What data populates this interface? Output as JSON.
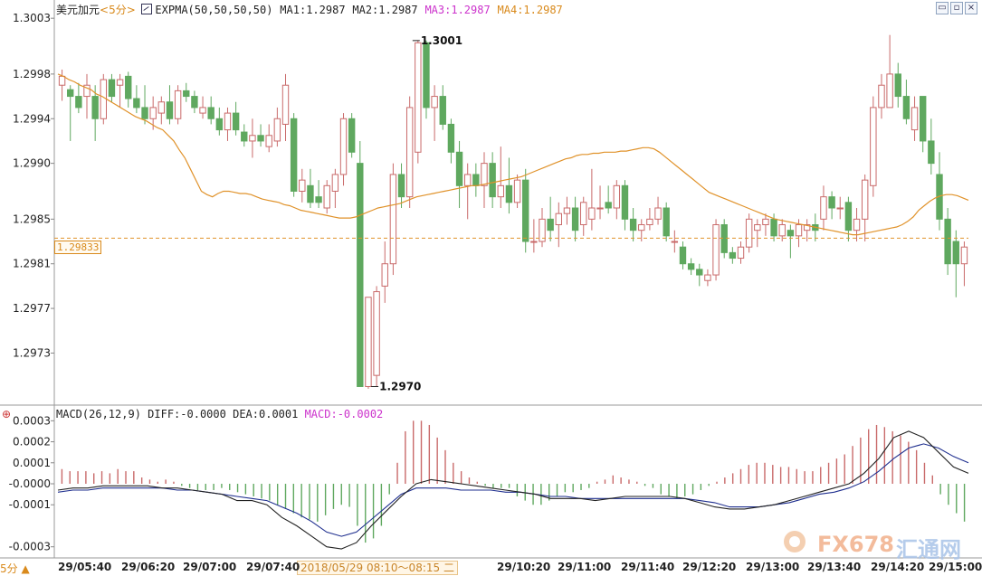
{
  "header": {
    "symbol": "美元加元",
    "period": "<5分>",
    "indicator": "EXPMA(50,50,50,50)",
    "ma1": "MA1:1.2987",
    "ma2": "MA2:1.2987",
    "ma3": "MA3:1.2987",
    "ma4": "MA4:1.2987"
  },
  "macd_header": {
    "name": "MACD(26,12,9)",
    "diff": "DIFF:-0.0000",
    "dea": "DEA:0.0001",
    "macd": "MACD:-0.0002"
  },
  "bottom": {
    "period_button": "5分 ▲",
    "cursor_date": "2018/05/29 08:10～08:15 二"
  },
  "watermark": {
    "brand": "FX678",
    "cn": "汇通网"
  },
  "colors": {
    "up": "#c96a6a",
    "down": "#5fa85f",
    "expma": "#e0922a",
    "diff": "#222222",
    "dea": "#1f2f8f",
    "macd_label": "#cc33cc",
    "grid": "#dddddd",
    "last_price": "#e0922a"
  },
  "icons": [
    "chart-type-icon",
    "minimize-icon",
    "restore-icon",
    "close-icon",
    "crosshair-icon",
    "fx678-logo-icon"
  ],
  "chart_data": [
    {
      "type": "candlestick",
      "yticks": [
        "1.3003",
        "1.2998",
        "1.2994",
        "1.2990",
        "1.2985",
        "1.2981",
        "1.2977",
        "1.2973"
      ],
      "ylim": [
        1.29685,
        1.30035
      ],
      "xticks": [
        "29/05:40",
        "29/06:20",
        "29/07:00",
        "29/07:40",
        "29/10:20",
        "29/11:00",
        "29/11:40",
        "29/12:20",
        "29/13:00",
        "29/13:40",
        "29/14:20",
        "29/15:00"
      ],
      "last_price_label": "1.29833",
      "last_price": 1.29833,
      "annotations": [
        {
          "text": "1.3001",
          "index": 43,
          "value": 1.3001,
          "anchor": "high"
        },
        {
          "text": "1.2970",
          "index": 38,
          "value": 1.297,
          "anchor": "low"
        }
      ],
      "candles": [
        [
          1.2997,
          1.29984,
          1.29956,
          1.29978
        ],
        [
          1.29966,
          1.2997,
          1.2992,
          1.2996
        ],
        [
          1.2996,
          1.29972,
          1.29945,
          1.2995
        ],
        [
          1.2996,
          1.2998,
          1.2994,
          1.2997
        ],
        [
          1.2996,
          1.2997,
          1.2992,
          1.2994
        ],
        [
          1.2994,
          1.2998,
          1.29935,
          1.29975
        ],
        [
          1.29975,
          1.2998,
          1.29955,
          1.2996
        ],
        [
          1.2997,
          1.2998,
          1.2995,
          1.29975
        ],
        [
          1.29978,
          1.29982,
          1.2995,
          1.29958
        ],
        [
          1.29958,
          1.2997,
          1.29945,
          1.2995
        ],
        [
          1.2995,
          1.2997,
          1.29935,
          1.2994
        ],
        [
          1.2994,
          1.2996,
          1.2993,
          1.2995
        ],
        [
          1.29945,
          1.2996,
          1.29935,
          1.29955
        ],
        [
          1.29955,
          1.2997,
          1.29935,
          1.2994
        ],
        [
          1.2994,
          1.2997,
          1.29935,
          1.29965
        ],
        [
          1.29965,
          1.29972,
          1.29955,
          1.2996
        ],
        [
          1.2996,
          1.29965,
          1.29945,
          1.2995
        ],
        [
          1.29945,
          1.2996,
          1.2994,
          1.2995
        ],
        [
          1.2995,
          1.2996,
          1.29935,
          1.2994
        ],
        [
          1.2994,
          1.2995,
          1.29925,
          1.2993
        ],
        [
          1.2993,
          1.2995,
          1.2992,
          1.29945
        ],
        [
          1.29945,
          1.29955,
          1.29925,
          1.2993
        ],
        [
          1.29928,
          1.29935,
          1.29915,
          1.2992
        ],
        [
          1.2992,
          1.2994,
          1.29905,
          1.29925
        ],
        [
          1.29925,
          1.29935,
          1.29915,
          1.2992
        ],
        [
          1.29915,
          1.29935,
          1.2991,
          1.29925
        ],
        [
          1.2992,
          1.2995,
          1.29915,
          1.2994
        ],
        [
          1.29935,
          1.2998,
          1.2992,
          1.2997
        ],
        [
          1.2994,
          1.29945,
          1.2987,
          1.29875
        ],
        [
          1.29875,
          1.29895,
          1.29865,
          1.29885
        ],
        [
          1.2988,
          1.29895,
          1.2986,
          1.29865
        ],
        [
          1.2987,
          1.29885,
          1.2986,
          1.29865
        ],
        [
          1.2986,
          1.29885,
          1.29855,
          1.2988
        ],
        [
          1.29875,
          1.29895,
          1.2986,
          1.2989
        ],
        [
          1.2989,
          1.29945,
          1.2988,
          1.2994
        ],
        [
          1.2994,
          1.29945,
          1.29905,
          1.2991
        ],
        [
          1.299,
          1.2992,
          1.297,
          1.297
        ],
        [
          1.297,
          1.2978,
          1.29698,
          1.2978
        ],
        [
          1.2971,
          1.2979,
          1.297,
          1.29785
        ],
        [
          1.2979,
          1.2983,
          1.29775,
          1.2981
        ],
        [
          1.2981,
          1.299,
          1.298,
          1.2989
        ],
        [
          1.2989,
          1.299,
          1.2986,
          1.2987
        ],
        [
          1.2987,
          1.2996,
          1.2986,
          1.2995
        ],
        [
          1.2991,
          1.3001,
          1.299,
          1.30008
        ],
        [
          1.30008,
          1.3001,
          1.2994,
          1.2995
        ],
        [
          1.2995,
          1.2997,
          1.2992,
          1.2996
        ],
        [
          1.2996,
          1.2997,
          1.2993,
          1.29935
        ],
        [
          1.29935,
          1.2994,
          1.299,
          1.2991
        ],
        [
          1.2991,
          1.2992,
          1.2986,
          1.2988
        ],
        [
          1.2988,
          1.299,
          1.2985,
          1.2989
        ],
        [
          1.2989,
          1.299,
          1.2987,
          1.2988
        ],
        [
          1.2988,
          1.2991,
          1.2986,
          1.299
        ],
        [
          1.299,
          1.2991,
          1.2986,
          1.2987
        ],
        [
          1.2987,
          1.29915,
          1.2986,
          1.2988
        ],
        [
          1.2988,
          1.29905,
          1.29855,
          1.29865
        ],
        [
          1.29865,
          1.2989,
          1.2986,
          1.29885
        ],
        [
          1.29885,
          1.29895,
          1.2982,
          1.2983
        ],
        [
          1.2983,
          1.2985,
          1.2982,
          1.2983
        ],
        [
          1.2983,
          1.2986,
          1.29825,
          1.2985
        ],
        [
          1.2985,
          1.2987,
          1.2983,
          1.2984
        ],
        [
          1.29845,
          1.29865,
          1.29825,
          1.29855
        ],
        [
          1.29855,
          1.2987,
          1.29845,
          1.2986
        ],
        [
          1.2986,
          1.2987,
          1.2983,
          1.2984
        ],
        [
          1.29845,
          1.2987,
          1.29835,
          1.29865
        ],
        [
          1.2985,
          1.29895,
          1.2984,
          1.2986
        ],
        [
          1.2986,
          1.2988,
          1.2985,
          1.2986
        ],
        [
          1.29865,
          1.2988,
          1.29855,
          1.2986
        ],
        [
          1.2986,
          1.29885,
          1.2985,
          1.2988
        ],
        [
          1.2988,
          1.29885,
          1.2984,
          1.2985
        ],
        [
          1.2985,
          1.2986,
          1.2983,
          1.2984
        ],
        [
          1.2984,
          1.2985,
          1.2983,
          1.29845
        ],
        [
          1.29845,
          1.2986,
          1.2984,
          1.2985
        ],
        [
          1.2985,
          1.2987,
          1.29845,
          1.2986
        ],
        [
          1.2986,
          1.29865,
          1.2983,
          1.29835
        ],
        [
          1.2983,
          1.2984,
          1.2982,
          1.2983
        ],
        [
          1.29825,
          1.2983,
          1.29805,
          1.2981
        ],
        [
          1.2981,
          1.29815,
          1.298,
          1.29805
        ],
        [
          1.29805,
          1.2981,
          1.2979,
          1.298
        ],
        [
          1.29795,
          1.29805,
          1.2979,
          1.298
        ],
        [
          1.298,
          1.2985,
          1.29795,
          1.29845
        ],
        [
          1.29845,
          1.2985,
          1.29815,
          1.2982
        ],
        [
          1.2982,
          1.29825,
          1.2981,
          1.29815
        ],
        [
          1.29815,
          1.2983,
          1.2981,
          1.29825
        ],
        [
          1.29825,
          1.29855,
          1.2982,
          1.2985
        ],
        [
          1.2984,
          1.2985,
          1.29825,
          1.29845
        ],
        [
          1.29845,
          1.29855,
          1.29835,
          1.2985
        ],
        [
          1.2985,
          1.29855,
          1.2983,
          1.29835
        ],
        [
          1.29835,
          1.2985,
          1.2983,
          1.29845
        ],
        [
          1.2984,
          1.29845,
          1.29815,
          1.29835
        ],
        [
          1.29835,
          1.2985,
          1.29825,
          1.29845
        ],
        [
          1.2984,
          1.2985,
          1.2983,
          1.29845
        ],
        [
          1.29845,
          1.29855,
          1.2983,
          1.2984
        ],
        [
          1.2985,
          1.2988,
          1.2984,
          1.2987
        ],
        [
          1.2987,
          1.29875,
          1.2985,
          1.2986
        ],
        [
          1.2986,
          1.2987,
          1.2985,
          1.2986
        ],
        [
          1.29865,
          1.2987,
          1.2983,
          1.2984
        ],
        [
          1.2984,
          1.2986,
          1.2983,
          1.2985
        ],
        [
          1.2985,
          1.2989,
          1.2983,
          1.29885
        ],
        [
          1.2988,
          1.2996,
          1.2987,
          1.2995
        ],
        [
          1.2995,
          1.2998,
          1.2994,
          1.2997
        ],
        [
          1.2995,
          1.30015,
          1.2995,
          1.2998
        ],
        [
          1.2998,
          1.2999,
          1.2995,
          1.2996
        ],
        [
          1.2996,
          1.29975,
          1.29935,
          1.2994
        ],
        [
          1.2993,
          1.2996,
          1.2992,
          1.2995
        ],
        [
          1.2996,
          1.2996,
          1.2991,
          1.2992
        ],
        [
          1.2992,
          1.2994,
          1.2989,
          1.299
        ],
        [
          1.2989,
          1.2991,
          1.2984,
          1.2985
        ],
        [
          1.2985,
          1.2986,
          1.298,
          1.2981
        ],
        [
          1.2983,
          1.2984,
          1.2978,
          1.2981
        ],
        [
          1.2981,
          1.2983,
          1.2979,
          1.29825
        ]
      ],
      "expma": [
        1.2998,
        1.29978,
        1.29975,
        1.29973,
        1.2997,
        1.29968,
        1.29966,
        1.29962,
        1.2996,
        1.29957,
        1.29954,
        1.29951,
        1.29948,
        1.29945,
        1.29942,
        1.2994,
        1.29938,
        1.29935,
        1.29932,
        1.2993,
        1.29925,
        1.2992,
        1.29912,
        1.29905,
        1.29895,
        1.29885,
        1.29875,
        1.29872,
        1.2987,
        1.29873,
        1.29875,
        1.29875,
        1.29874,
        1.29873,
        1.29873,
        1.29872,
        1.2987,
        1.29868,
        1.29867,
        1.29866,
        1.29865,
        1.29863,
        1.29862,
        1.2986,
        1.29858,
        1.29857,
        1.29856,
        1.29855,
        1.29854,
        1.29853,
        1.29852,
        1.29851,
        1.29851,
        1.29851,
        1.29852,
        1.29854,
        1.29856,
        1.29858,
        1.2986,
        1.29861,
        1.29862,
        1.29863,
        1.29864,
        1.29866,
        1.29868,
        1.2987,
        1.29871,
        1.29872,
        1.29873,
        1.29874,
        1.29875,
        1.29876,
        1.29877,
        1.29878,
        1.29879,
        1.2988,
        1.2988,
        1.29881,
        1.29882,
        1.29883,
        1.29884,
        1.29885,
        1.29886,
        1.29887,
        1.29888,
        1.2989,
        1.29892,
        1.29894,
        1.29896,
        1.29898,
        1.299,
        1.29902,
        1.29904,
        1.29905,
        1.29907,
        1.29908,
        1.29908,
        1.29909,
        1.29909,
        1.2991,
        1.2991,
        1.2991,
        1.29911,
        1.29911,
        1.29912,
        1.29913,
        1.29914,
        1.29914,
        1.29913,
        1.2991,
        1.29906,
        1.29902,
        1.29898,
        1.29894,
        1.2989,
        1.29886,
        1.29882,
        1.29878,
        1.29874,
        1.29872,
        1.2987,
        1.29868,
        1.29866,
        1.29864,
        1.29862,
        1.2986,
        1.29858,
        1.29856,
        1.29854,
        1.29852,
        1.2985,
        1.29849,
        1.29848,
        1.29847,
        1.29846,
        1.29845,
        1.29844,
        1.29843,
        1.29842,
        1.29841,
        1.2984,
        1.29839,
        1.29838,
        1.29837,
        1.29836,
        1.29836,
        1.29837,
        1.29838,
        1.29839,
        1.2984,
        1.29841,
        1.29842,
        1.29843,
        1.29845,
        1.29848,
        1.29852,
        1.29858,
        1.29862,
        1.29866,
        1.29869,
        1.29871,
        1.29872,
        1.29872,
        1.29871,
        1.29869,
        1.29867
      ]
    },
    {
      "type": "macd",
      "yticks": [
        "0.0003",
        "0.0002",
        "0.0001",
        "-0.0000",
        "-0.0001",
        "-0.0003"
      ],
      "ylim": [
        -0.00034,
        0.00031
      ],
      "macd": [
        7e-05,
        6e-05,
        6e-05,
        6e-05,
        5e-05,
        6e-05,
        5e-05,
        7e-05,
        6e-05,
        6e-05,
        3e-05,
        2e-05,
        1e-05,
        2e-05,
        1e-05,
        -1e-05,
        -2e-05,
        -3e-05,
        -3e-05,
        -3e-05,
        -2e-05,
        -3e-05,
        -4e-05,
        -5e-05,
        -6e-05,
        -7e-05,
        -8e-05,
        -0.0001,
        -0.00012,
        -0.00014,
        -0.00016,
        -0.00017,
        -0.00018,
        -0.00015,
        -0.00012,
        -0.0001,
        -0.00011,
        -0.0002,
        -0.00028,
        -0.00026,
        -0.0002,
        -5e-05,
        0.0001,
        0.00025,
        0.0003,
        0.0003,
        0.00028,
        0.00022,
        0.00016,
        0.0001,
        6e-05,
        3e-05,
        1e-05,
        -1e-05,
        -2e-05,
        -2e-05,
        -2e-05,
        -6e-05,
        -8e-05,
        -0.0001,
        -0.0001,
        -8e-05,
        -6e-05,
        -4e-05,
        -4e-05,
        -3e-05,
        -2e-05,
        1e-05,
        2e-05,
        4e-05,
        3e-05,
        2e-05,
        1e-05,
        -1e-05,
        -2e-05,
        -5e-05,
        -6e-05,
        -7e-05,
        -6e-05,
        -5e-05,
        -3e-05,
        -1e-05,
        1e-05,
        3e-05,
        5e-05,
        7e-05,
        9e-05,
        0.0001,
        0.0001,
        9e-05,
        8e-05,
        8e-05,
        7e-05,
        6e-05,
        6e-05,
        8e-05,
        0.0001,
        0.00012,
        0.00014,
        0.00018,
        0.00022,
        0.00026,
        0.00028,
        0.00027,
        0.00025,
        0.00023,
        0.0002,
        0.00016,
        0.0001,
        4e-05,
        -5e-05,
        -0.0001,
        -0.00014,
        -0.00018
      ],
      "diff": [
        -3e-05,
        -2e-05,
        -2e-05,
        -1e-05,
        -1e-05,
        -1e-05,
        -1e-05,
        -2e-05,
        -2e-05,
        -3e-05,
        -4e-05,
        -5e-05,
        -8e-05,
        -8e-05,
        -0.0001,
        -0.00016,
        -0.0002,
        -0.00025,
        -0.0003,
        -0.00031,
        -0.00028,
        -0.0002,
        -0.00013,
        -6e-05,
        0.0,
        2e-05,
        1e-05,
        0.0,
        -1e-05,
        -2e-05,
        -3e-05,
        -4e-05,
        -5e-05,
        -7e-05,
        -7e-05,
        -7e-05,
        -8e-05,
        -7e-05,
        -6e-05,
        -6e-05,
        -6e-05,
        -6e-05,
        -7e-05,
        -9e-05,
        -0.00011,
        -0.00012,
        -0.00012,
        -0.00011,
        -0.0001,
        -8e-05,
        -6e-05,
        -4e-05,
        -2e-05,
        0.0,
        5e-05,
        0.00012,
        0.00022,
        0.00025,
        0.00022,
        0.00015,
        8e-05,
        5e-05
      ],
      "dea": [
        -4e-05,
        -3e-05,
        -3e-05,
        -2e-05,
        -2e-05,
        -2e-05,
        -2e-05,
        -2e-05,
        -3e-05,
        -3e-05,
        -4e-05,
        -5e-05,
        -6e-05,
        -7e-05,
        -8e-05,
        -0.00011,
        -0.00014,
        -0.00018,
        -0.00023,
        -0.00025,
        -0.00023,
        -0.00017,
        -0.00011,
        -5e-05,
        -2e-05,
        -2e-05,
        -2e-05,
        -3e-05,
        -3e-05,
        -3e-05,
        -4e-05,
        -4e-05,
        -5e-05,
        -6e-05,
        -6e-05,
        -7e-05,
        -7e-05,
        -7e-05,
        -7e-05,
        -7e-05,
        -7e-05,
        -7e-05,
        -7e-05,
        -8e-05,
        -9e-05,
        -0.00011,
        -0.00011,
        -0.00011,
        -0.0001,
        -9e-05,
        -7e-05,
        -5e-05,
        -4e-05,
        -2e-05,
        1e-05,
        6e-05,
        0.00012,
        0.00017,
        0.00019,
        0.00017,
        0.00013,
        0.0001
      ]
    }
  ]
}
